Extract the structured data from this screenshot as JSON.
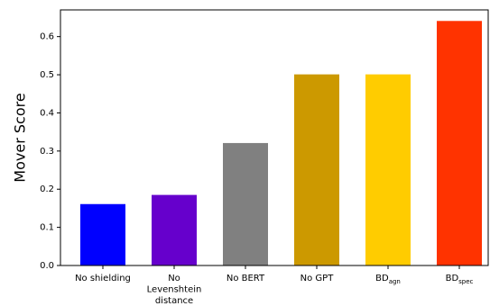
{
  "chart_data": {
    "type": "bar",
    "title": "",
    "xlabel": "",
    "ylabel": "Mover Score",
    "ylim": [
      0,
      0.67
    ],
    "yticks": [
      0.0,
      0.1,
      0.2,
      0.3,
      0.4,
      0.5,
      0.6
    ],
    "ytick_labels": [
      "0.0",
      "0.1",
      "0.2",
      "0.3",
      "0.4",
      "0.5",
      "0.6"
    ],
    "grid": false,
    "categories": [
      {
        "lines": [
          "No shielding"
        ],
        "sub": ""
      },
      {
        "lines": [
          "No",
          "Levenshtein",
          "distance"
        ],
        "sub": ""
      },
      {
        "lines": [
          "No BERT"
        ],
        "sub": ""
      },
      {
        "lines": [
          "No GPT"
        ],
        "sub": ""
      },
      {
        "lines": [
          "BD"
        ],
        "sub": "agn"
      },
      {
        "lines": [
          "BD"
        ],
        "sub": "spec"
      }
    ],
    "values": [
      0.161,
      0.185,
      0.321,
      0.501,
      0.501,
      0.641
    ],
    "colors": [
      "#0000ff",
      "#6600cc",
      "#808080",
      "#cc9900",
      "#ffcc00",
      "#ff3300"
    ]
  }
}
